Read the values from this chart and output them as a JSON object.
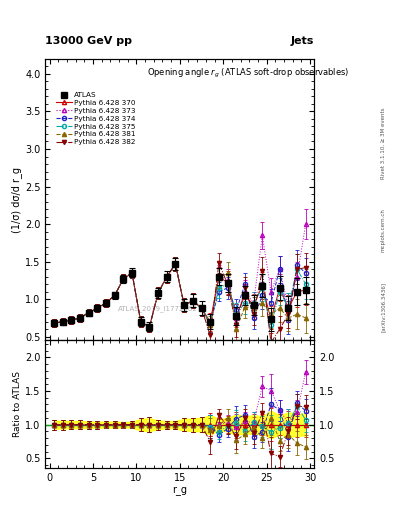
{
  "title_top": "13000 GeV pp",
  "title_right": "Jets",
  "plot_title": "Opening angle $r_g$ (ATLAS soft-drop observables)",
  "ylabel_main": "(1/σ) dσ/d r_g",
  "ylabel_ratio": "Ratio to ATLAS",
  "xlabel": "r_g",
  "watermark": "ATLAS_2019_I1772062",
  "right_label_top": "Rivet 3.1.10, ≥ 3M events",
  "right_label_bottom": "[arXiv:1306.3436]",
  "right_label_site": "mcplots.cern.ch",
  "ylim_main": [
    0.45,
    4.2
  ],
  "ylim_ratio": [
    0.35,
    2.25
  ],
  "xlim": [
    -0.5,
    30.5
  ],
  "yticks_main": [
    0.5,
    1.0,
    1.5,
    2.0,
    2.5,
    3.0,
    3.5,
    4.0
  ],
  "yticks_ratio": [
    0.5,
    1.0,
    1.5,
    2.0
  ],
  "xticks": [
    0,
    5,
    10,
    15,
    20,
    25,
    30
  ],
  "atlas_x": [
    0.5,
    1.5,
    2.5,
    3.5,
    4.5,
    5.5,
    6.5,
    7.5,
    8.5,
    9.5,
    10.5,
    11.5,
    12.5,
    13.5,
    14.5,
    15.5,
    16.5,
    17.5,
    18.5,
    19.5,
    20.5,
    21.5,
    22.5,
    23.5,
    24.5,
    25.5,
    26.5,
    27.5,
    28.5,
    29.5
  ],
  "atlas_y": [
    0.68,
    0.7,
    0.72,
    0.75,
    0.82,
    0.88,
    0.95,
    1.05,
    1.27,
    1.35,
    0.7,
    0.63,
    1.08,
    1.3,
    1.47,
    0.92,
    0.98,
    0.88,
    0.7,
    1.3,
    1.22,
    0.78,
    1.05,
    0.92,
    1.18,
    0.73,
    1.15,
    0.88,
    1.1,
    1.12
  ],
  "atlas_yerr": [
    0.04,
    0.04,
    0.04,
    0.04,
    0.04,
    0.04,
    0.04,
    0.05,
    0.05,
    0.06,
    0.06,
    0.06,
    0.07,
    0.07,
    0.08,
    0.08,
    0.09,
    0.09,
    0.1,
    0.11,
    0.12,
    0.12,
    0.13,
    0.13,
    0.15,
    0.15,
    0.16,
    0.16,
    0.18,
    0.18
  ],
  "mc370_y": [
    0.68,
    0.7,
    0.72,
    0.75,
    0.82,
    0.88,
    0.95,
    1.05,
    1.27,
    1.35,
    0.7,
    0.63,
    1.08,
    1.3,
    1.47,
    0.92,
    0.98,
    0.88,
    0.7,
    1.3,
    1.22,
    0.78,
    1.05,
    0.92,
    1.18,
    0.73,
    1.15,
    0.88,
    1.1,
    1.12
  ],
  "mc373_y": [
    0.68,
    0.7,
    0.72,
    0.75,
    0.82,
    0.88,
    0.95,
    1.05,
    1.27,
    1.35,
    0.7,
    0.63,
    1.08,
    1.3,
    1.47,
    0.92,
    0.98,
    0.88,
    0.68,
    1.32,
    1.25,
    0.75,
    1.1,
    0.95,
    1.85,
    1.1,
    1.4,
    0.9,
    1.3,
    2.0
  ],
  "mc374_y": [
    0.68,
    0.7,
    0.72,
    0.75,
    0.82,
    0.88,
    0.95,
    1.05,
    1.27,
    1.35,
    0.7,
    0.63,
    1.08,
    1.3,
    1.47,
    0.92,
    0.98,
    0.88,
    0.68,
    1.1,
    1.15,
    0.85,
    1.2,
    0.75,
    1.05,
    0.95,
    1.4,
    0.72,
    1.45,
    1.35
  ],
  "mc375_y": [
    0.68,
    0.7,
    0.72,
    0.75,
    0.82,
    0.88,
    0.95,
    1.05,
    1.27,
    1.35,
    0.7,
    0.63,
    1.08,
    1.3,
    1.47,
    0.92,
    0.98,
    0.88,
    0.68,
    1.15,
    1.2,
    0.8,
    0.95,
    0.95,
    1.15,
    0.65,
    1.1,
    0.9,
    1.4,
    1.2
  ],
  "mc381_y": [
    0.68,
    0.7,
    0.72,
    0.75,
    0.82,
    0.88,
    0.95,
    1.05,
    1.27,
    1.35,
    0.7,
    0.63,
    1.08,
    1.3,
    1.47,
    0.92,
    0.98,
    0.88,
    0.65,
    1.28,
    1.35,
    0.6,
    0.9,
    0.88,
    0.95,
    0.8,
    0.88,
    0.75,
    0.8,
    0.75
  ],
  "mc382_y": [
    0.68,
    0.7,
    0.72,
    0.75,
    0.82,
    0.88,
    0.95,
    1.05,
    1.27,
    1.35,
    0.7,
    0.63,
    1.08,
    1.3,
    1.47,
    0.92,
    0.98,
    0.88,
    0.52,
    1.48,
    1.2,
    0.65,
    1.15,
    0.8,
    1.38,
    0.42,
    0.6,
    0.8,
    1.4,
    1.42
  ],
  "mc_yerr_scale": [
    0.05,
    0.05,
    0.05,
    0.05,
    0.05,
    0.05,
    0.05,
    0.05,
    0.06,
    0.07,
    0.07,
    0.07,
    0.08,
    0.08,
    0.09,
    0.09,
    0.1,
    0.1,
    0.12,
    0.13,
    0.15,
    0.15,
    0.15,
    0.15,
    0.18,
    0.18,
    0.18,
    0.18,
    0.2,
    0.2
  ],
  "series": [
    {
      "label": "Pythia 6.428 370",
      "color": "#cc0000",
      "linestyle": "-",
      "marker": "^",
      "filled": false,
      "key": "mc370_y"
    },
    {
      "label": "Pythia 6.428 373",
      "color": "#bb00bb",
      "linestyle": ":",
      "marker": "^",
      "filled": false,
      "key": "mc373_y"
    },
    {
      "label": "Pythia 6.428 374",
      "color": "#2222cc",
      "linestyle": "--",
      "marker": "o",
      "filled": false,
      "key": "mc374_y"
    },
    {
      "label": "Pythia 6.428 375",
      "color": "#00aaaa",
      "linestyle": "-.",
      "marker": "o",
      "filled": false,
      "key": "mc375_y"
    },
    {
      "label": "Pythia 6.428 381",
      "color": "#886600",
      "linestyle": "--",
      "marker": "^",
      "filled": true,
      "key": "mc381_y"
    },
    {
      "label": "Pythia 6.428 382",
      "color": "#880000",
      "linestyle": "-.",
      "marker": "v",
      "filled": true,
      "key": "mc382_y"
    }
  ]
}
